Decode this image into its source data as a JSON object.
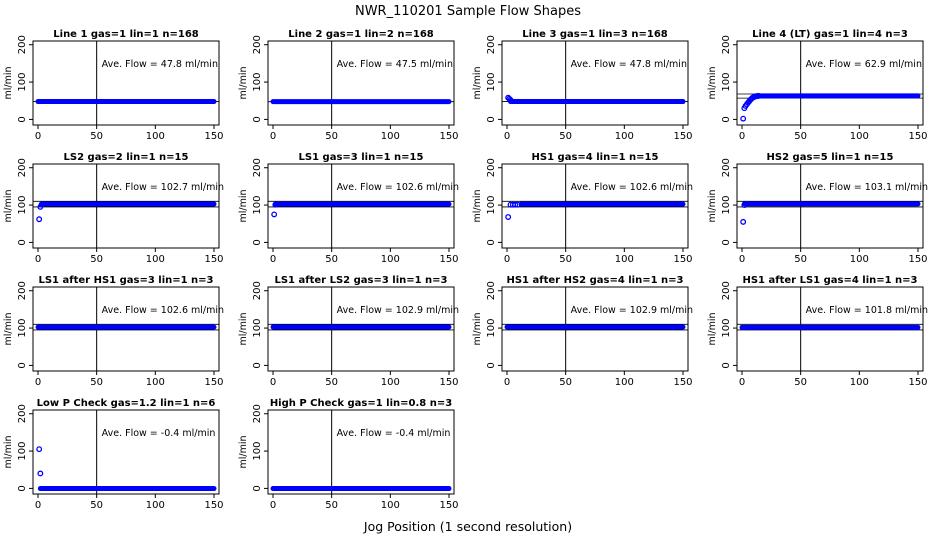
{
  "figure": {
    "title": "NWR_110201  Sample Flow Shapes",
    "xlabel": "Jog Position (1 second resolution)"
  },
  "panel_defaults": {
    "ylabel": "ml/min",
    "xlim": [
      0,
      150
    ],
    "ylim": [
      -15,
      210
    ],
    "xticks": [
      0,
      50,
      100,
      150
    ],
    "yticks": [
      0,
      100,
      200
    ],
    "vline_x": 50,
    "marker_color": "#0000ff",
    "annotation_prefix": "Ave. Flow =",
    "annotation_unit": "ml/min"
  },
  "chart_data": [
    {
      "type": "scatter",
      "title": "Line 1 gas=1 lin=1 n=168",
      "ave_flow": "47.8",
      "ylim": [
        -15,
        210
      ],
      "hlines": [
        47.8
      ],
      "segments": [
        {
          "x0": 0,
          "x1": 150,
          "y": 47.8
        }
      ],
      "points": []
    },
    {
      "type": "scatter",
      "title": "Line 2 gas=1 lin=2 n=168",
      "ave_flow": "47.5",
      "ylim": [
        -15,
        210
      ],
      "hlines": [
        47.5
      ],
      "segments": [
        {
          "x0": 0,
          "x1": 150,
          "y": 47.5
        }
      ],
      "points": []
    },
    {
      "type": "scatter",
      "title": "Line 3 gas=1 lin=3 n=168",
      "ave_flow": "47.8",
      "ylim": [
        -15,
        210
      ],
      "hlines": [
        47.8
      ],
      "segments": [
        {
          "x0": 3,
          "x1": 150,
          "y": 47.8
        }
      ],
      "points": [
        [
          1,
          58
        ],
        [
          2,
          55
        ],
        [
          3,
          52
        ]
      ]
    },
    {
      "type": "scatter",
      "title": "Line 4 (LT) gas=1 lin=4 n=3",
      "ave_flow": "62.9",
      "ylim": [
        -15,
        210
      ],
      "hlines": [
        57,
        68
      ],
      "segments": [
        {
          "x0": 14,
          "x1": 150,
          "y": 63
        }
      ],
      "points": [
        [
          1,
          2
        ],
        [
          2,
          30
        ],
        [
          3,
          36
        ],
        [
          4,
          40
        ],
        [
          5,
          44
        ],
        [
          6,
          48
        ],
        [
          7,
          52
        ],
        [
          8,
          55
        ],
        [
          9,
          58
        ],
        [
          10,
          60
        ],
        [
          11,
          61
        ],
        [
          12,
          62
        ],
        [
          13,
          62.5
        ],
        [
          14,
          63
        ]
      ]
    },
    {
      "type": "scatter",
      "title": "LS2 gas=2 lin=1 n=15",
      "ave_flow": "102.7",
      "ylim": [
        -15,
        210
      ],
      "hlines": [
        95,
        110
      ],
      "segments": [
        {
          "x0": 3,
          "x1": 150,
          "y": 102.7
        }
      ],
      "points": [
        [
          1,
          62
        ],
        [
          2,
          95
        ],
        [
          3,
          101
        ]
      ]
    },
    {
      "type": "scatter",
      "title": "LS1 gas=3 lin=1 n=15",
      "ave_flow": "102.6",
      "ylim": [
        -15,
        210
      ],
      "hlines": [
        95,
        110
      ],
      "segments": [
        {
          "x0": 2,
          "x1": 150,
          "y": 102.6
        }
      ],
      "points": [
        [
          1,
          75
        ],
        [
          2,
          101
        ]
      ]
    },
    {
      "type": "scatter",
      "title": "HS1 gas=4 lin=1 n=15",
      "ave_flow": "102.6",
      "ylim": [
        -15,
        210
      ],
      "hlines": [
        95,
        110
      ],
      "segments": [
        {
          "x0": 12,
          "x1": 150,
          "y": 102.6
        }
      ],
      "points": [
        [
          1,
          68
        ],
        [
          3,
          101
        ],
        [
          5,
          101
        ],
        [
          7,
          101
        ],
        [
          9,
          101
        ]
      ]
    },
    {
      "type": "scatter",
      "title": "HS2 gas=5 lin=1 n=15",
      "ave_flow": "103.1",
      "ylim": [
        -15,
        210
      ],
      "hlines": [
        95,
        110
      ],
      "segments": [
        {
          "x0": 2,
          "x1": 150,
          "y": 103.1
        }
      ],
      "points": [
        [
          1,
          55
        ],
        [
          2,
          100
        ]
      ]
    },
    {
      "type": "scatter",
      "title": "LS1 after HS1 gas=3 lin=1 n=3",
      "ave_flow": "102.6",
      "ylim": [
        -15,
        210
      ],
      "hlines": [
        95,
        110
      ],
      "segments": [
        {
          "x0": 0,
          "x1": 150,
          "y": 102.6
        }
      ],
      "points": []
    },
    {
      "type": "scatter",
      "title": "LS1 after LS2 gas=3 lin=1 n=3",
      "ave_flow": "102.9",
      "ylim": [
        -15,
        210
      ],
      "hlines": [
        95,
        110
      ],
      "segments": [
        {
          "x0": 0,
          "x1": 150,
          "y": 102.9
        }
      ],
      "points": []
    },
    {
      "type": "scatter",
      "title": "HS1 after HS2 gas=4 lin=1 n=3",
      "ave_flow": "102.9",
      "ylim": [
        -15,
        210
      ],
      "hlines": [
        95,
        110
      ],
      "segments": [
        {
          "x0": 0,
          "x1": 150,
          "y": 102.9
        }
      ],
      "points": []
    },
    {
      "type": "scatter",
      "title": "HS1 after LS1 gas=4 lin=1 n=3",
      "ave_flow": "101.8",
      "ylim": [
        -15,
        210
      ],
      "hlines": [
        95,
        110
      ],
      "segments": [
        {
          "x0": 0,
          "x1": 150,
          "y": 101.8
        }
      ],
      "points": []
    },
    {
      "type": "scatter",
      "title": "Low P Check gas=1.2 lin=1 n=6",
      "ave_flow": "-0.4",
      "ylim": [
        -15,
        210
      ],
      "hlines": [],
      "segments": [
        {
          "x0": 2,
          "x1": 150,
          "y": -0.4
        }
      ],
      "points": [
        [
          1,
          105
        ],
        [
          2,
          40
        ]
      ]
    },
    {
      "type": "scatter",
      "title": "High P Check gas=1 lin=0.8 n=3",
      "ave_flow": "-0.4",
      "ylim": [
        -15,
        210
      ],
      "hlines": [],
      "segments": [
        {
          "x0": 0,
          "x1": 150,
          "y": -0.4
        }
      ],
      "points": []
    }
  ]
}
